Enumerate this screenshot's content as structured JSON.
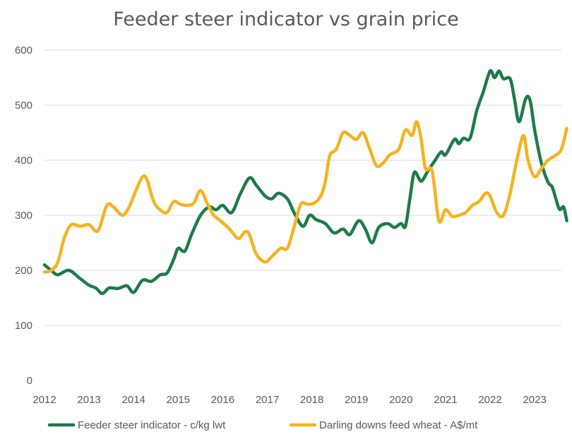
{
  "chart_data": {
    "type": "line",
    "title": "Feeder steer indicator vs grain price",
    "xlabel": "",
    "ylabel": "",
    "xlim": [
      2012,
      2023.6
    ],
    "ylim": [
      0,
      600
    ],
    "y_ticks": [
      "0",
      "100",
      "200",
      "300",
      "400",
      "500",
      "600"
    ],
    "x_ticks": [
      "2012",
      "2013",
      "2014",
      "2015",
      "2016",
      "2017",
      "2018",
      "2019",
      "2020",
      "2021",
      "2022",
      "2023"
    ],
    "grid": true,
    "legend_position": "bottom",
    "series": [
      {
        "name": "Feeder steer indicator - c/kg lwt",
        "color": "#1e7b4a",
        "points": [
          [
            2012.0,
            210
          ],
          [
            2012.15,
            200
          ],
          [
            2012.3,
            192
          ],
          [
            2012.55,
            200
          ],
          [
            2012.8,
            185
          ],
          [
            2013.0,
            173
          ],
          [
            2013.15,
            168
          ],
          [
            2013.3,
            158
          ],
          [
            2013.45,
            168
          ],
          [
            2013.65,
            167
          ],
          [
            2013.85,
            172
          ],
          [
            2014.0,
            160
          ],
          [
            2014.2,
            182
          ],
          [
            2014.4,
            180
          ],
          [
            2014.6,
            192
          ],
          [
            2014.75,
            195
          ],
          [
            2014.9,
            220
          ],
          [
            2015.0,
            240
          ],
          [
            2015.15,
            235
          ],
          [
            2015.3,
            265
          ],
          [
            2015.5,
            300
          ],
          [
            2015.7,
            315
          ],
          [
            2015.85,
            310
          ],
          [
            2016.0,
            318
          ],
          [
            2016.2,
            305
          ],
          [
            2016.4,
            340
          ],
          [
            2016.6,
            368
          ],
          [
            2016.75,
            355
          ],
          [
            2016.95,
            335
          ],
          [
            2017.1,
            330
          ],
          [
            2017.25,
            340
          ],
          [
            2017.45,
            330
          ],
          [
            2017.6,
            305
          ],
          [
            2017.8,
            280
          ],
          [
            2017.95,
            300
          ],
          [
            2018.1,
            292
          ],
          [
            2018.3,
            285
          ],
          [
            2018.5,
            268
          ],
          [
            2018.7,
            275
          ],
          [
            2018.85,
            265
          ],
          [
            2019.05,
            290
          ],
          [
            2019.2,
            275
          ],
          [
            2019.35,
            250
          ],
          [
            2019.5,
            278
          ],
          [
            2019.7,
            285
          ],
          [
            2019.85,
            278
          ],
          [
            2020.0,
            285
          ],
          [
            2020.1,
            280
          ],
          [
            2020.2,
            330
          ],
          [
            2020.3,
            378
          ],
          [
            2020.45,
            362
          ],
          [
            2020.6,
            380
          ],
          [
            2020.75,
            398
          ],
          [
            2020.9,
            415
          ],
          [
            2021.0,
            410
          ],
          [
            2021.2,
            438
          ],
          [
            2021.3,
            430
          ],
          [
            2021.4,
            440
          ],
          [
            2021.55,
            440
          ],
          [
            2021.7,
            490
          ],
          [
            2021.85,
            525
          ],
          [
            2022.0,
            562
          ],
          [
            2022.1,
            550
          ],
          [
            2022.2,
            562
          ],
          [
            2022.3,
            548
          ],
          [
            2022.45,
            548
          ],
          [
            2022.55,
            510
          ],
          [
            2022.65,
            470
          ],
          [
            2022.8,
            512
          ],
          [
            2022.9,
            508
          ],
          [
            2023.0,
            455
          ],
          [
            2023.15,
            395
          ],
          [
            2023.3,
            360
          ],
          [
            2023.4,
            350
          ],
          [
            2023.55,
            312
          ],
          [
            2023.65,
            315
          ],
          [
            2023.72,
            290
          ]
        ]
      },
      {
        "name": "Darling downs feed wheat - A$/mt",
        "color": "#f5b321",
        "points": [
          [
            2012.0,
            197
          ],
          [
            2012.15,
            200
          ],
          [
            2012.3,
            215
          ],
          [
            2012.45,
            260
          ],
          [
            2012.6,
            283
          ],
          [
            2012.8,
            280
          ],
          [
            2013.0,
            283
          ],
          [
            2013.2,
            272
          ],
          [
            2013.4,
            318
          ],
          [
            2013.55,
            315
          ],
          [
            2013.75,
            300
          ],
          [
            2013.9,
            315
          ],
          [
            2014.05,
            345
          ],
          [
            2014.2,
            370
          ],
          [
            2014.3,
            365
          ],
          [
            2014.45,
            325
          ],
          [
            2014.6,
            310
          ],
          [
            2014.75,
            305
          ],
          [
            2014.9,
            325
          ],
          [
            2015.05,
            320
          ],
          [
            2015.2,
            318
          ],
          [
            2015.35,
            322
          ],
          [
            2015.5,
            345
          ],
          [
            2015.65,
            322
          ],
          [
            2015.8,
            300
          ],
          [
            2015.95,
            290
          ],
          [
            2016.15,
            275
          ],
          [
            2016.35,
            258
          ],
          [
            2016.5,
            270
          ],
          [
            2016.6,
            265
          ],
          [
            2016.75,
            230
          ],
          [
            2016.95,
            215
          ],
          [
            2017.1,
            225
          ],
          [
            2017.3,
            240
          ],
          [
            2017.45,
            240
          ],
          [
            2017.6,
            278
          ],
          [
            2017.75,
            320
          ],
          [
            2017.9,
            320
          ],
          [
            2018.05,
            322
          ],
          [
            2018.2,
            335
          ],
          [
            2018.3,
            360
          ],
          [
            2018.4,
            408
          ],
          [
            2018.55,
            420
          ],
          [
            2018.7,
            450
          ],
          [
            2018.85,
            445
          ],
          [
            2019.0,
            438
          ],
          [
            2019.15,
            450
          ],
          [
            2019.3,
            420
          ],
          [
            2019.45,
            390
          ],
          [
            2019.6,
            395
          ],
          [
            2019.75,
            410
          ],
          [
            2019.95,
            420
          ],
          [
            2020.1,
            455
          ],
          [
            2020.25,
            445
          ],
          [
            2020.35,
            470
          ],
          [
            2020.45,
            440
          ],
          [
            2020.55,
            385
          ],
          [
            2020.7,
            380
          ],
          [
            2020.85,
            290
          ],
          [
            2021.0,
            310
          ],
          [
            2021.15,
            298
          ],
          [
            2021.3,
            300
          ],
          [
            2021.45,
            305
          ],
          [
            2021.6,
            318
          ],
          [
            2021.75,
            325
          ],
          [
            2021.9,
            340
          ],
          [
            2022.0,
            335
          ],
          [
            2022.15,
            305
          ],
          [
            2022.3,
            300
          ],
          [
            2022.45,
            340
          ],
          [
            2022.6,
            400
          ],
          [
            2022.75,
            445
          ],
          [
            2022.85,
            400
          ],
          [
            2023.0,
            370
          ],
          [
            2023.15,
            385
          ],
          [
            2023.3,
            400
          ],
          [
            2023.45,
            408
          ],
          [
            2023.6,
            420
          ],
          [
            2023.72,
            458
          ]
        ]
      }
    ]
  }
}
